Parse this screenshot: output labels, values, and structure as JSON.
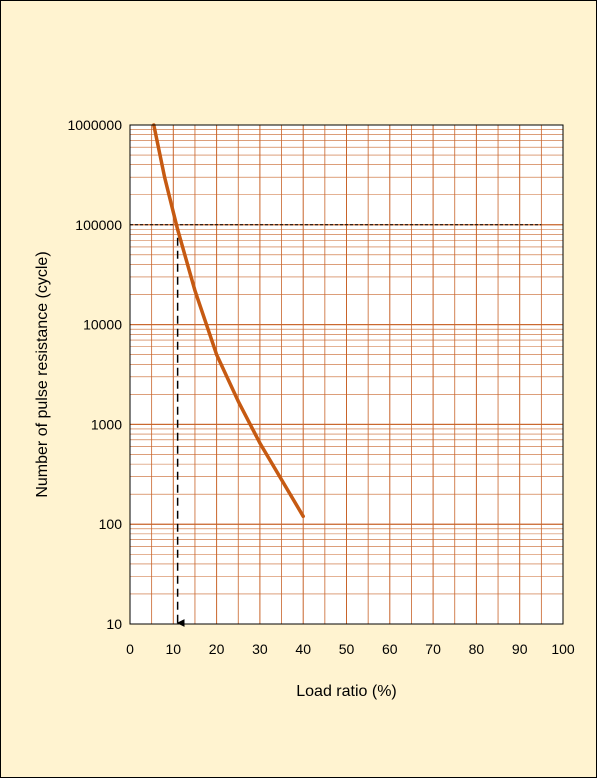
{
  "chart_data": {
    "type": "line",
    "title": "",
    "xlabel": "Load ratio (%)",
    "ylabel": "Number of pulse resistance (cycle)",
    "xlim": [
      0,
      100
    ],
    "ylim": [
      10,
      1000000
    ],
    "y_scale": "log",
    "grid": true,
    "x_ticks": [
      "0",
      "10",
      "20",
      "30",
      "40",
      "50",
      "60",
      "70",
      "80",
      "90",
      "100"
    ],
    "y_ticks": [
      "10",
      "100",
      "1000",
      "10000",
      "100000",
      "1000000"
    ],
    "series": [
      {
        "x": [
          5.5,
          8,
          11,
          15,
          20,
          25,
          30,
          35,
          40
        ],
        "y": [
          1000000,
          300000,
          90000,
          22000,
          5000,
          1700,
          650,
          280,
          120
        ]
      }
    ],
    "reference_lines": [
      {
        "kind": "horizontal",
        "y": 100000,
        "x_to": 95
      },
      {
        "kind": "vertical",
        "x": 11,
        "y_from": 100000,
        "arrow": "down"
      }
    ],
    "colors": {
      "panel_background": "#fff3d0",
      "plot_background": "#ffffff",
      "grid": "#c8642a",
      "curve": "#c65a12",
      "reference": "#000000"
    }
  }
}
